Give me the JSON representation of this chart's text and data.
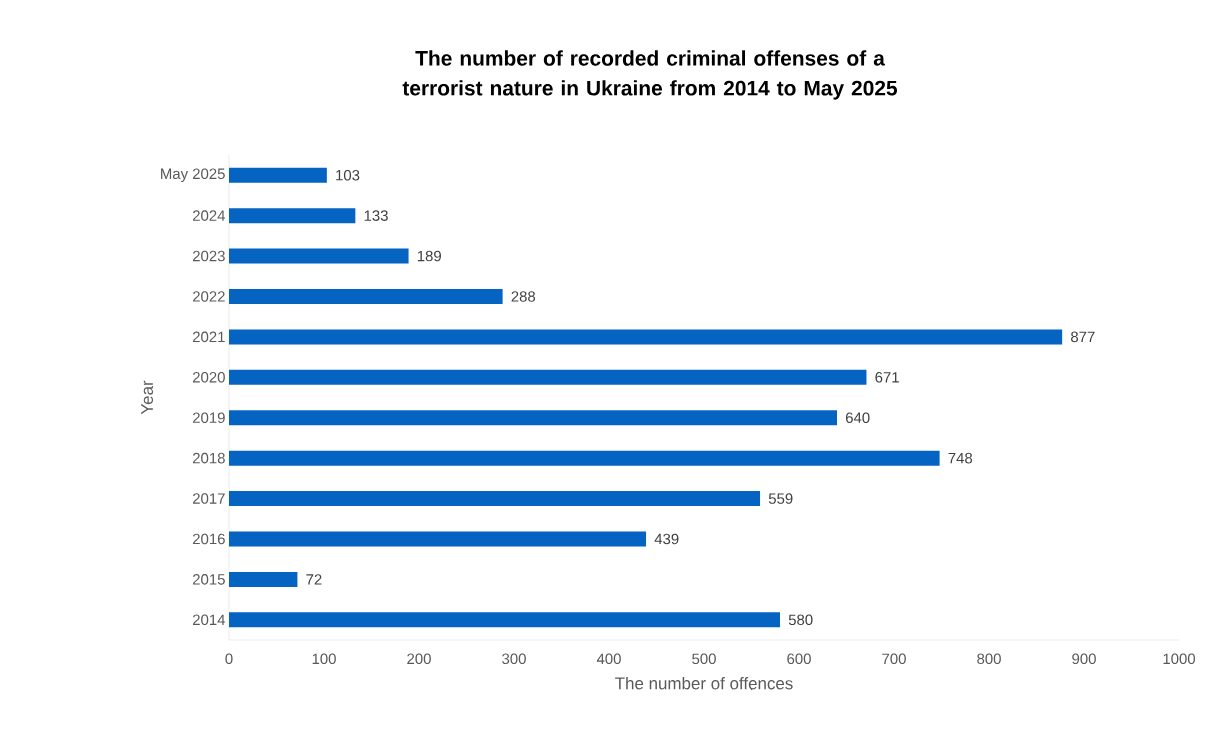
{
  "chart_data": {
    "type": "bar",
    "orientation": "horizontal",
    "title": "The number of recorded criminal offenses of a terrorist nature in Ukraine from 2014 to May 2025",
    "xlabel": "The number of offences",
    "ylabel": "Year",
    "categories": [
      "May 2025",
      "2024",
      "2023",
      "2022",
      "2021",
      "2020",
      "2019",
      "2018",
      "2017",
      "2016",
      "2015",
      "2014"
    ],
    "values": [
      103,
      133,
      189,
      288,
      877,
      671,
      640,
      748,
      559,
      439,
      72,
      580
    ],
    "color": "#0563c1",
    "data_labels": true,
    "xlim": [
      0,
      1000
    ],
    "xticks": [
      0,
      100,
      200,
      300,
      400,
      500,
      600,
      700,
      800,
      900,
      1000
    ]
  }
}
